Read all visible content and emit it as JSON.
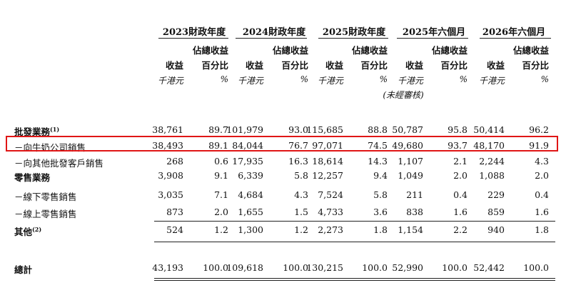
{
  "periods": [
    "2023財政年度",
    "2024財政年度",
    "2025財政年度",
    "2025年六個月",
    "2026年六個月"
  ],
  "col_header_top": "佔總收益",
  "col_header_revenue": "收益",
  "col_header_pct": "百分比",
  "unit_revenue": "千港元",
  "unit_pct": "%",
  "unaudited_note": "(未經審核)",
  "rows": [
    {
      "label": "批發業務",
      "sup": "(1)",
      "values": [
        "38,761",
        "89.7",
        "101,979",
        "93.0",
        "115,685",
        "88.8",
        "50,787",
        "95.8",
        "50,414",
        "96.2"
      ]
    },
    {
      "label": "－向牛奶公司銷售",
      "sup": "",
      "values": [
        "38,493",
        "89.1",
        "84,044",
        "76.7",
        "97,071",
        "74.5",
        "49,680",
        "93.7",
        "48,170",
        "91.9"
      ]
    },
    {
      "label": "－向其他批發客戶銷售",
      "sup": "",
      "values": [
        "268",
        "0.6",
        "17,935",
        "16.3",
        "18,614",
        "14.3",
        "1,107",
        "2.1",
        "2,244",
        "4.3"
      ]
    },
    {
      "label": "零售業務",
      "sup": "",
      "values": [
        "3,908",
        "9.1",
        "6,339",
        "5.8",
        "12,257",
        "9.4",
        "1,049",
        "2.0",
        "1,088",
        "2.0"
      ]
    },
    {
      "label": "－線下零售銷售",
      "sup": "",
      "values": [
        "3,035",
        "7.1",
        "4,684",
        "4.3",
        "7,524",
        "5.8",
        "211",
        "0.4",
        "229",
        "0.4"
      ]
    },
    {
      "label": "－線上零售銷售",
      "sup": "",
      "values": [
        "873",
        "2.0",
        "1,655",
        "1.5",
        "4,733",
        "3.6",
        "838",
        "1.6",
        "859",
        "1.6"
      ]
    },
    {
      "label": "其他",
      "sup": "(2)",
      "values": [
        "524",
        "1.2",
        "1,300",
        "1.2",
        "2,273",
        "1.8",
        "1,154",
        "2.2",
        "940",
        "1.8"
      ]
    }
  ],
  "total": {
    "label": "總計",
    "values": [
      "43,193",
      "100.0",
      "109,618",
      "100.0",
      "130,215",
      "100.0",
      "52,990",
      "100.0",
      "52,442",
      "100.0"
    ]
  }
}
